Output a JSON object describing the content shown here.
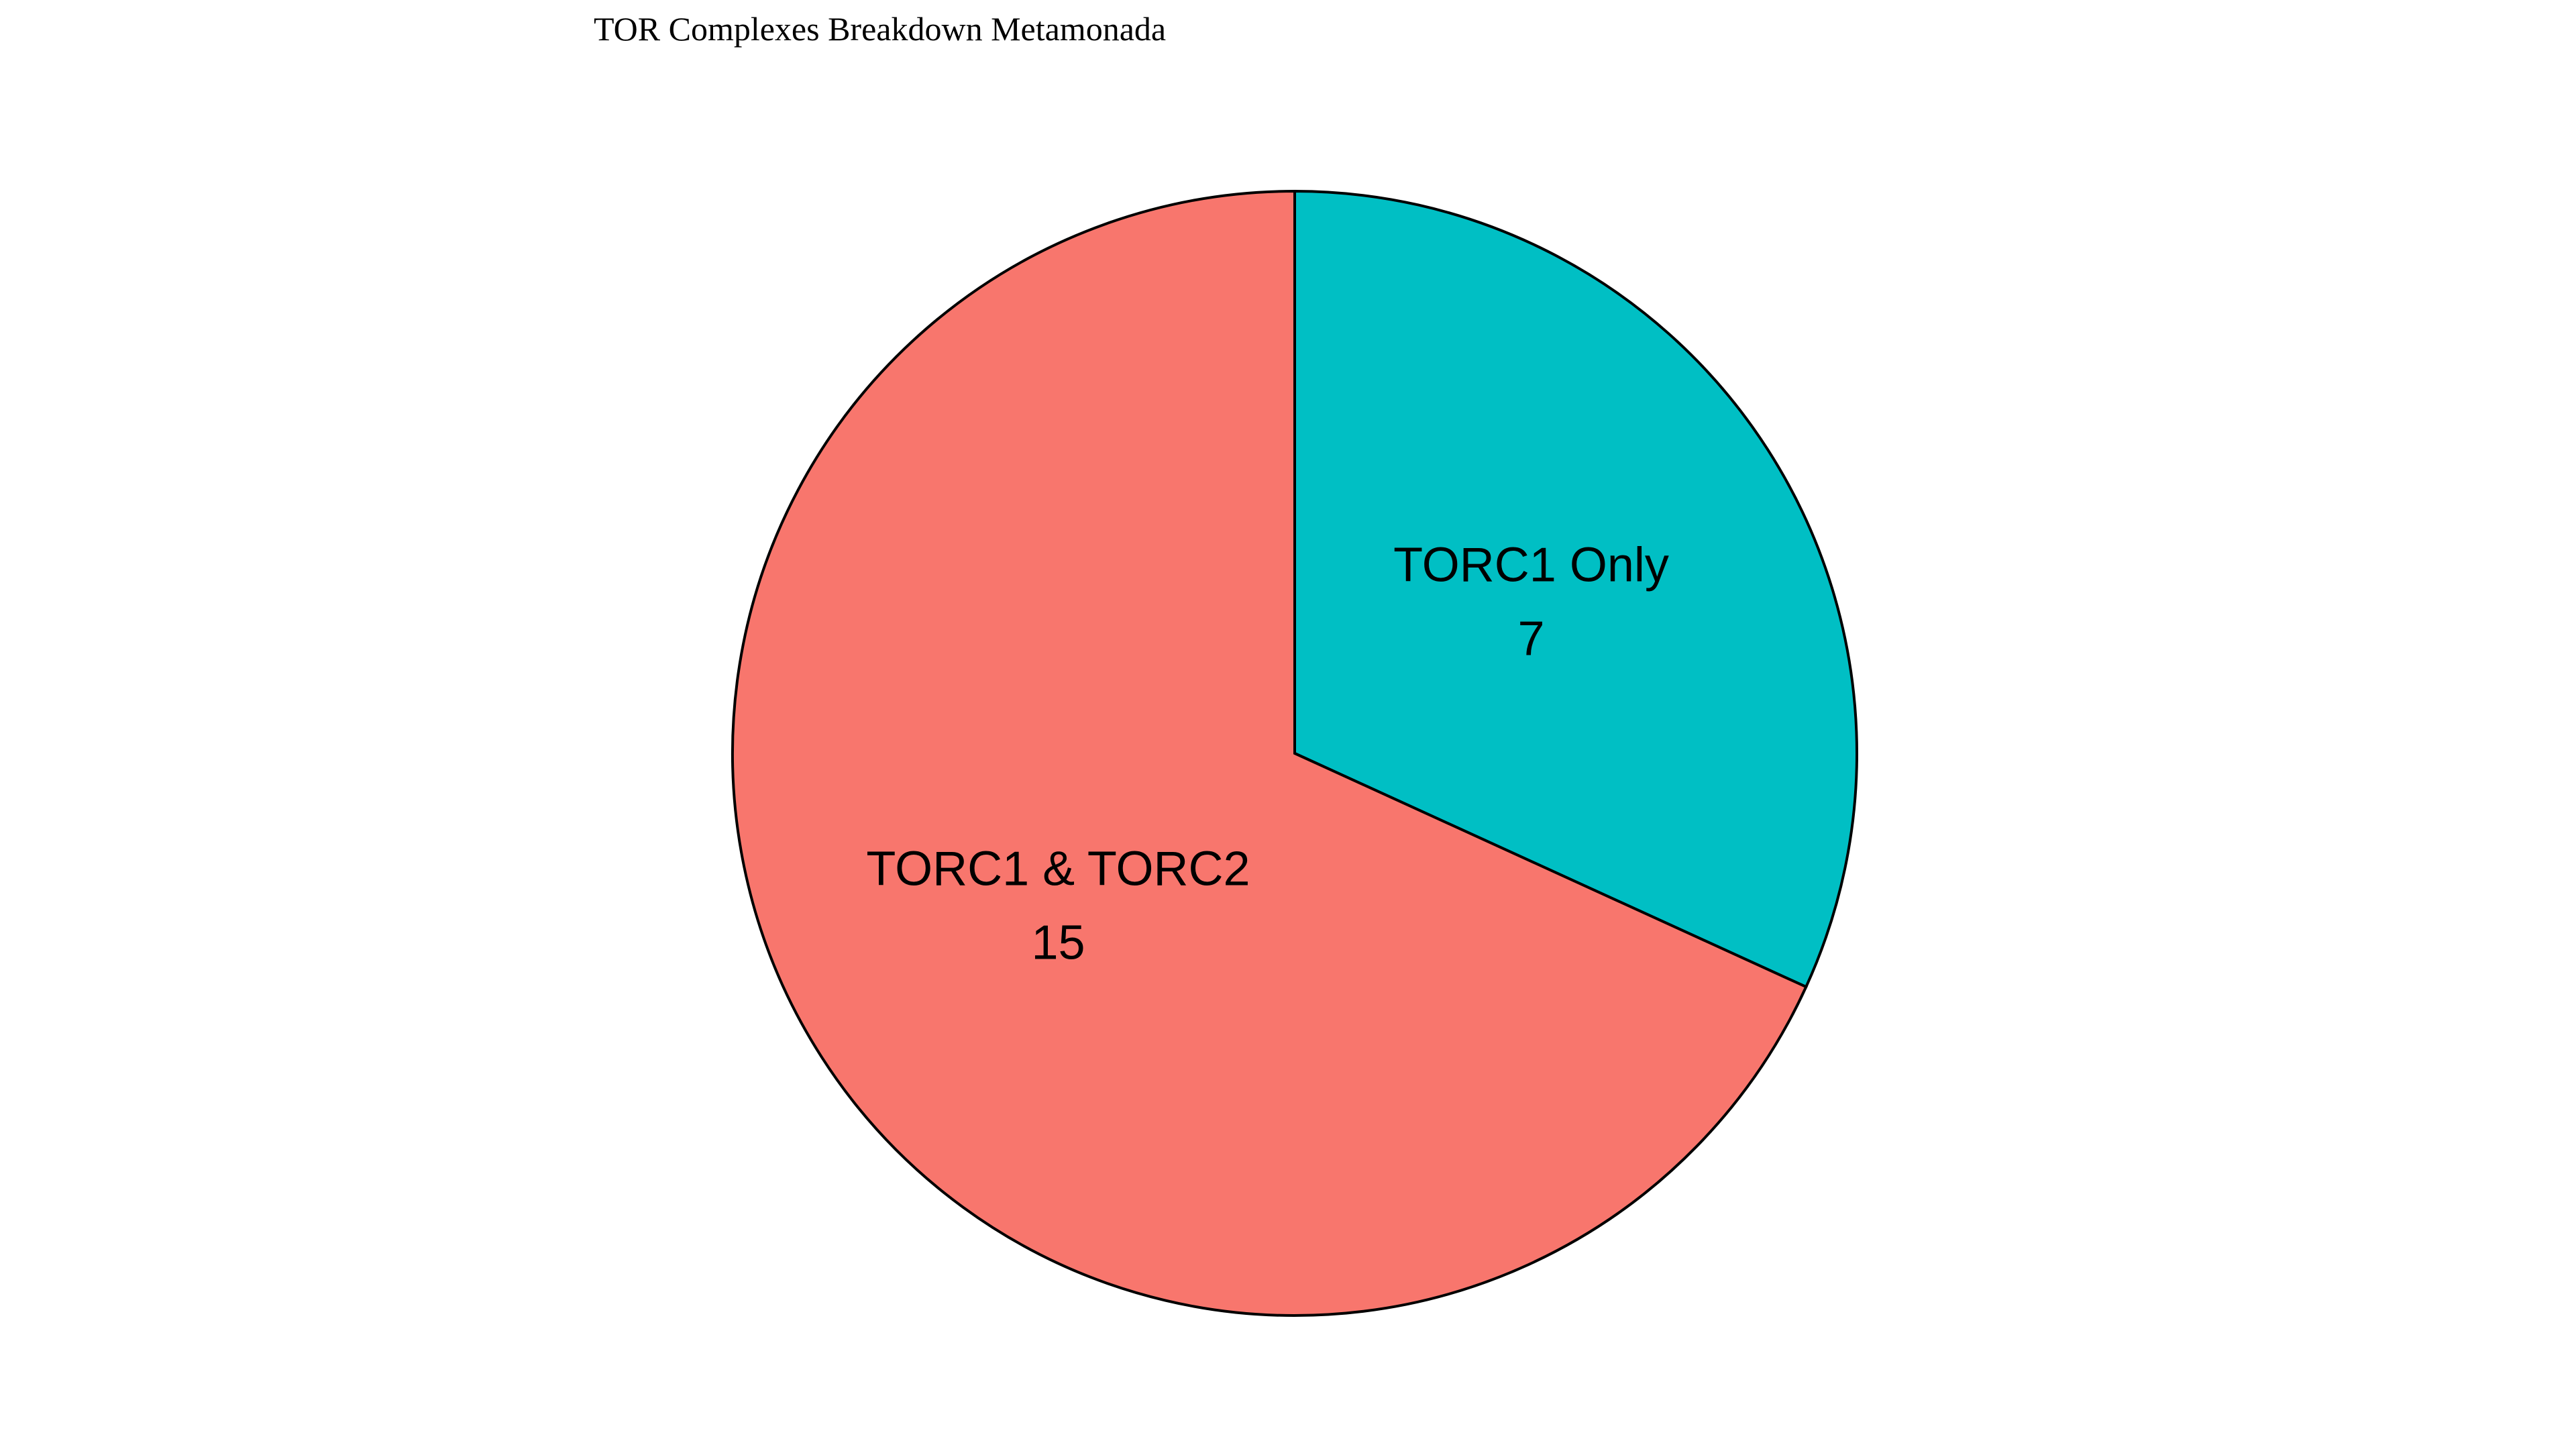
{
  "chart_data": {
    "type": "pie",
    "title": "TOR Complexes Breakdown Metamonada",
    "slices": [
      {
        "label": "TORC1 Only",
        "value": 7,
        "value_label": "7",
        "color": "#00BFC4"
      },
      {
        "label": "TORC1 & TORC2",
        "value": 15,
        "value_label": "15",
        "color": "#F8766D"
      }
    ],
    "start_angle": "12 o'clock",
    "direction": "clockwise",
    "legend": "none"
  }
}
